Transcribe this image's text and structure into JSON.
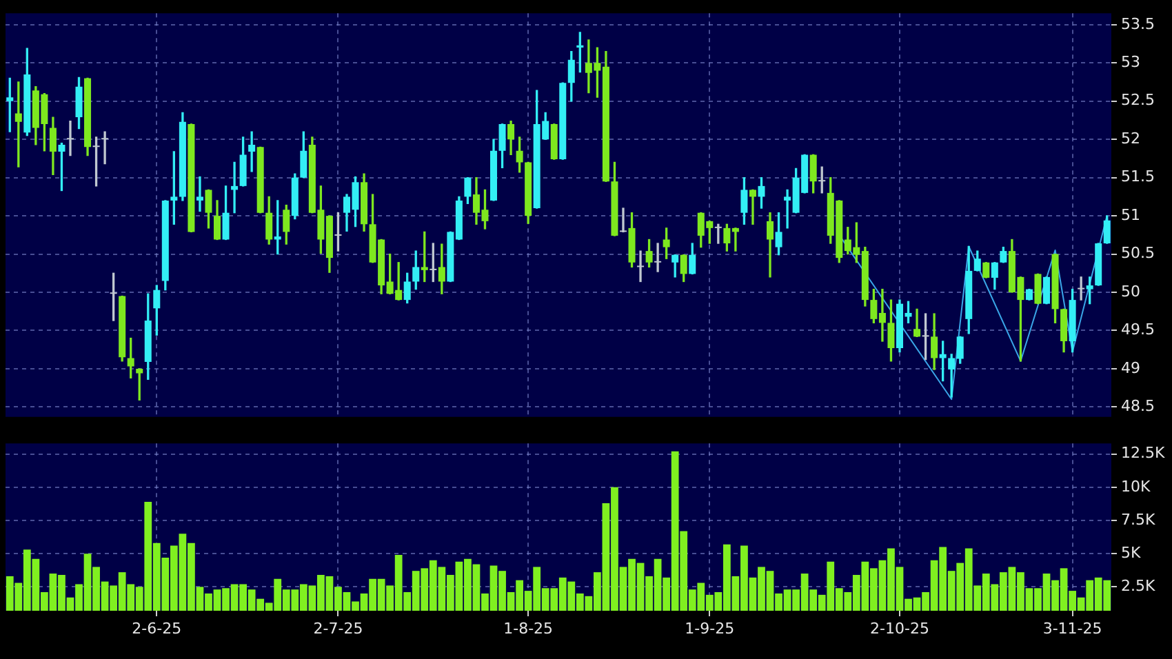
{
  "chart_data": [
    {
      "type": "candlestick",
      "categories": [
        null,
        null,
        null,
        null,
        null,
        null,
        null,
        null,
        null,
        null,
        null,
        null,
        null,
        null,
        null,
        null,
        null,
        null,
        null,
        null,
        null,
        null,
        null,
        null,
        null,
        null,
        null,
        null,
        null,
        null,
        null,
        null,
        null,
        null,
        null,
        null,
        null,
        null,
        null,
        null,
        null,
        null,
        null,
        null,
        null,
        null,
        null,
        null,
        null,
        null,
        null,
        null,
        null,
        null,
        null,
        null,
        null,
        null,
        null,
        null,
        null,
        null,
        null,
        null,
        null,
        null,
        null,
        null,
        null,
        null,
        null,
        null,
        null,
        null,
        null,
        null,
        null,
        null,
        null,
        null,
        null,
        null,
        null,
        null,
        null,
        null,
        null,
        null,
        null,
        null,
        null,
        null,
        null,
        null,
        null,
        null,
        null,
        null,
        null,
        null,
        null,
        null,
        null,
        null,
        null,
        null,
        null,
        null,
        null,
        null,
        null,
        null,
        null,
        null,
        null,
        null,
        null,
        null,
        null,
        null,
        null,
        null,
        null,
        null,
        null,
        null,
        null,
        null
      ],
      "ohlc": [
        [
          52.5,
          52.8,
          52.1,
          52.55
        ],
        [
          52.34,
          52.75,
          51.64,
          52.23
        ],
        [
          52.09,
          53.19,
          52.05,
          52.85
        ],
        [
          52.64,
          52.69,
          51.93,
          52.15
        ],
        [
          52.59,
          52.6,
          51.85,
          52.2
        ],
        [
          52.15,
          52.29,
          51.54,
          51.84
        ],
        [
          51.84,
          51.95,
          51.33,
          51.93
        ],
        [
          52.0,
          52.24,
          51.79,
          52.0
        ],
        [
          52.29,
          52.81,
          52.14,
          52.69
        ],
        [
          52.8,
          52.8,
          51.79,
          51.9
        ],
        [
          51.9,
          52.03,
          51.39,
          51.9
        ],
        [
          52.0,
          52.1,
          51.68,
          52.0
        ],
        [
          49.98,
          50.25,
          49.63,
          49.98
        ],
        [
          49.95,
          49.95,
          49.1,
          49.15
        ],
        [
          49.14,
          49.4,
          48.88,
          49.03
        ],
        [
          49.0,
          49.0,
          48.59,
          48.94
        ],
        [
          49.09,
          49.98,
          48.86,
          49.63
        ],
        [
          49.79,
          50.09,
          49.44,
          50.03
        ],
        [
          50.15,
          51.2,
          50.03,
          51.2
        ],
        [
          51.2,
          51.84,
          50.89,
          51.25
        ],
        [
          51.25,
          52.35,
          51.2,
          52.23
        ],
        [
          52.2,
          52.2,
          50.79,
          50.79
        ],
        [
          51.2,
          51.51,
          51.06,
          51.25
        ],
        [
          51.34,
          51.34,
          50.84,
          51.04
        ],
        [
          51.0,
          51.2,
          50.69,
          50.69
        ],
        [
          50.69,
          51.39,
          50.69,
          51.04
        ],
        [
          51.34,
          51.7,
          51.04,
          51.39
        ],
        [
          51.39,
          52.03,
          51.39,
          51.8
        ],
        [
          51.84,
          52.1,
          51.58,
          51.93
        ],
        [
          51.9,
          51.9,
          51.04,
          51.04
        ],
        [
          51.04,
          51.25,
          50.63,
          50.69
        ],
        [
          50.69,
          51.2,
          50.5,
          50.73
        ],
        [
          51.08,
          51.14,
          50.63,
          50.79
        ],
        [
          51.0,
          51.55,
          50.96,
          51.5
        ],
        [
          51.5,
          52.1,
          51.5,
          51.85
        ],
        [
          51.93,
          52.03,
          51.04,
          51.04
        ],
        [
          51.08,
          51.39,
          50.51,
          50.69
        ],
        [
          51.0,
          51.0,
          50.26,
          50.45
        ],
        [
          50.74,
          51.04,
          50.54,
          50.74
        ],
        [
          51.04,
          51.28,
          50.8,
          51.25
        ],
        [
          51.08,
          51.51,
          50.86,
          51.44
        ],
        [
          51.44,
          51.55,
          50.8,
          50.89
        ],
        [
          50.89,
          51.28,
          50.39,
          50.39
        ],
        [
          50.69,
          50.69,
          49.98,
          50.09
        ],
        [
          50.14,
          50.5,
          49.98,
          49.98
        ],
        [
          50.03,
          50.39,
          49.9,
          49.9
        ],
        [
          49.9,
          50.25,
          49.86,
          50.14
        ],
        [
          50.14,
          50.54,
          50.04,
          50.33
        ],
        [
          50.33,
          50.79,
          50.14,
          50.29
        ],
        [
          50.29,
          50.64,
          50.14,
          50.29
        ],
        [
          50.33,
          50.63,
          49.98,
          50.14
        ],
        [
          50.14,
          50.79,
          50.14,
          50.79
        ],
        [
          50.69,
          51.25,
          50.69,
          51.2
        ],
        [
          51.25,
          51.5,
          51.16,
          51.5
        ],
        [
          51.28,
          51.5,
          50.89,
          51.04
        ],
        [
          51.08,
          51.34,
          50.83,
          50.93
        ],
        [
          51.2,
          52.0,
          51.2,
          51.85
        ],
        [
          51.85,
          52.2,
          51.63,
          52.2
        ],
        [
          52.2,
          52.24,
          51.8,
          52.0
        ],
        [
          51.85,
          52.03,
          51.57,
          51.7
        ],
        [
          51.7,
          51.7,
          50.9,
          51.0
        ],
        [
          51.1,
          52.64,
          51.1,
          52.2
        ],
        [
          52.0,
          52.35,
          52.0,
          52.24
        ],
        [
          52.2,
          52.2,
          51.74,
          51.74
        ],
        [
          51.74,
          52.74,
          51.74,
          52.74
        ],
        [
          52.74,
          53.15,
          52.5,
          53.04
        ],
        [
          53.2,
          53.4,
          52.88,
          53.23
        ],
        [
          53.0,
          53.3,
          52.61,
          52.87
        ],
        [
          53.0,
          53.2,
          52.55,
          52.9
        ],
        [
          52.95,
          53.15,
          51.45,
          51.45
        ],
        [
          51.45,
          51.7,
          50.74,
          50.74
        ],
        [
          50.79,
          51.1,
          50.79,
          50.79
        ],
        [
          50.84,
          51.04,
          50.33,
          50.39
        ],
        [
          50.33,
          50.54,
          50.14,
          50.33
        ],
        [
          50.54,
          50.69,
          50.33,
          50.39
        ],
        [
          50.39,
          50.64,
          50.27,
          50.39
        ],
        [
          50.69,
          50.84,
          50.44,
          50.59
        ],
        [
          50.39,
          50.49,
          50.2,
          50.49
        ],
        [
          50.49,
          50.49,
          50.14,
          50.24
        ],
        [
          50.24,
          50.64,
          50.24,
          50.49
        ],
        [
          51.04,
          51.04,
          50.59,
          50.74
        ],
        [
          50.93,
          50.93,
          50.64,
          50.84
        ],
        [
          50.84,
          50.89,
          50.64,
          50.84
        ],
        [
          50.84,
          50.89,
          50.54,
          50.64
        ],
        [
          50.84,
          50.84,
          50.54,
          50.79
        ],
        [
          51.04,
          51.5,
          50.89,
          51.34
        ],
        [
          51.34,
          51.34,
          50.89,
          51.25
        ],
        [
          51.25,
          51.5,
          51.1,
          51.39
        ],
        [
          50.93,
          51.04,
          50.2,
          50.69
        ],
        [
          50.59,
          51.04,
          50.49,
          50.79
        ],
        [
          51.2,
          51.34,
          50.84,
          51.25
        ],
        [
          51.04,
          51.62,
          51.04,
          51.5
        ],
        [
          51.3,
          51.8,
          51.3,
          51.8
        ],
        [
          51.8,
          51.8,
          51.3,
          51.45
        ],
        [
          51.45,
          51.64,
          51.3,
          51.45
        ],
        [
          51.3,
          51.5,
          50.64,
          50.74
        ],
        [
          51.2,
          51.2,
          50.39,
          50.45
        ],
        [
          50.69,
          50.85,
          50.5,
          50.54
        ],
        [
          50.59,
          50.91,
          50.39,
          50.49
        ],
        [
          50.54,
          50.59,
          49.82,
          49.9
        ],
        [
          49.9,
          50.04,
          49.6,
          49.65
        ],
        [
          49.73,
          50.04,
          49.36,
          49.6
        ],
        [
          49.6,
          49.9,
          49.1,
          49.27
        ],
        [
          49.27,
          49.9,
          49.22,
          49.85
        ],
        [
          49.68,
          49.88,
          49.6,
          49.73
        ],
        [
          49.52,
          49.78,
          49.42,
          49.42
        ],
        [
          49.42,
          49.72,
          49.12,
          49.42
        ],
        [
          49.42,
          49.72,
          48.99,
          49.14
        ],
        [
          49.14,
          49.36,
          48.84,
          49.19
        ],
        [
          48.99,
          49.19,
          48.63,
          49.14
        ],
        [
          49.13,
          49.42,
          49.07,
          49.42
        ],
        [
          49.65,
          50.6,
          49.46,
          50.28
        ],
        [
          50.28,
          50.54,
          50.28,
          50.44
        ],
        [
          50.39,
          50.39,
          50.19,
          50.19
        ],
        [
          50.19,
          50.39,
          50.04,
          50.39
        ],
        [
          50.39,
          50.59,
          50.39,
          50.54
        ],
        [
          50.54,
          50.69,
          50.0,
          50.0
        ],
        [
          50.2,
          50.2,
          49.1,
          49.9
        ],
        [
          49.9,
          50.04,
          49.9,
          50.04
        ],
        [
          50.24,
          50.24,
          49.85,
          49.85
        ],
        [
          49.85,
          50.2,
          49.85,
          50.2
        ],
        [
          50.5,
          50.5,
          49.6,
          49.78
        ],
        [
          49.78,
          49.78,
          49.22,
          49.36
        ],
        [
          49.36,
          50.04,
          49.22,
          49.9
        ],
        [
          50.04,
          50.2,
          49.9,
          50.04
        ],
        [
          50.04,
          50.2,
          49.85,
          50.09
        ],
        [
          50.09,
          50.64,
          50.09,
          50.64
        ],
        [
          50.64,
          51.0,
          50.64,
          50.94
        ]
      ],
      "colors": [
        "#33eef5",
        "#7ee81f",
        "#33eef5",
        "#7ee81f",
        "#7ee81f",
        "#7ee81f",
        "#33eef5",
        "#c0c8d0",
        "#33eef5",
        "#7ee81f",
        "#c0c8d0",
        "#c0c8d0",
        "#c0c8d0",
        "#7ee81f",
        "#7ee81f",
        "#7ee81f",
        "#33eef5",
        "#33eef5",
        "#33eef5",
        "#33eef5",
        "#33eef5",
        "#7ee81f",
        "#33eef5",
        "#7ee81f",
        "#7ee81f",
        "#33eef5",
        "#33eef5",
        "#33eef5",
        "#33eef5",
        "#7ee81f",
        "#7ee81f",
        "#33eef5",
        "#7ee81f",
        "#33eef5",
        "#33eef5",
        "#7ee81f",
        "#7ee81f",
        "#7ee81f",
        "#c0c8d0",
        "#33eef5",
        "#33eef5",
        "#7ee81f",
        "#7ee81f",
        "#7ee81f",
        "#7ee81f",
        "#7ee81f",
        "#33eef5",
        "#33eef5",
        "#7ee81f",
        "#c0c8d0",
        "#7ee81f",
        "#33eef5",
        "#33eef5",
        "#33eef5",
        "#7ee81f",
        "#7ee81f",
        "#33eef5",
        "#33eef5",
        "#7ee81f",
        "#7ee81f",
        "#7ee81f",
        "#33eef5",
        "#33eef5",
        "#7ee81f",
        "#33eef5",
        "#33eef5",
        "#33eef5",
        "#7ee81f",
        "#7ee81f",
        "#7ee81f",
        "#7ee81f",
        "#c0c8d0",
        "#7ee81f",
        "#c0c8d0",
        "#7ee81f",
        "#c0c8d0",
        "#7ee81f",
        "#33eef5",
        "#7ee81f",
        "#33eef5",
        "#7ee81f",
        "#7ee81f",
        "#c0c8d0",
        "#7ee81f",
        "#7ee81f",
        "#33eef5",
        "#7ee81f",
        "#33eef5",
        "#7ee81f",
        "#33eef5",
        "#33eef5",
        "#33eef5",
        "#33eef5",
        "#7ee81f",
        "#c0c8d0",
        "#7ee81f",
        "#7ee81f",
        "#7ee81f",
        "#7ee81f",
        "#7ee81f",
        "#7ee81f",
        "#7ee81f",
        "#7ee81f",
        "#33eef5",
        "#33eef5",
        "#7ee81f",
        "#c0c8d0",
        "#7ee81f",
        "#33eef5",
        "#33eef5",
        "#33eef5",
        "#33eef5",
        "#33eef5",
        "#7ee81f",
        "#33eef5",
        "#33eef5",
        "#7ee81f",
        "#7ee81f",
        "#33eef5",
        "#7ee81f",
        "#33eef5",
        "#7ee81f",
        "#7ee81f",
        "#33eef5",
        "#c0c8d0",
        "#33eef5",
        "#33eef5",
        "#33eef5"
      ],
      "series": [
        {
          "type": "line",
          "color": "#3aa6e8",
          "values": [
            null,
            null,
            null,
            null,
            null,
            null,
            null,
            null,
            null,
            null,
            null,
            null,
            null,
            null,
            null,
            null,
            null,
            null,
            null,
            null,
            null,
            null,
            null,
            null,
            null,
            null,
            null,
            null,
            null,
            null,
            null,
            null,
            null,
            null,
            null,
            null,
            null,
            null,
            null,
            null,
            null,
            null,
            null,
            null,
            null,
            null,
            null,
            null,
            null,
            null,
            null,
            null,
            null,
            null,
            null,
            null,
            null,
            null,
            null,
            null,
            null,
            null,
            null,
            null,
            null,
            null,
            null,
            null,
            null,
            null,
            null,
            null,
            null,
            null,
            null,
            null,
            null,
            null,
            null,
            null,
            null,
            null,
            null,
            null,
            null,
            null,
            null,
            null,
            null,
            null,
            null,
            null,
            null,
            null,
            null,
            null,
            50.75,
            null,
            null,
            null,
            null,
            null,
            null,
            null,
            null,
            null,
            null,
            null,
            null,
            48.6,
            null,
            50.6,
            null,
            null,
            null,
            null,
            null,
            49.1,
            null,
            null,
            null,
            50.55,
            null,
            49.22,
            null,
            null,
            null,
            51.0
          ]
        }
      ],
      "marker": "none",
      "line_style": "solid",
      "ylim": [
        48.37,
        53.65
      ],
      "yticks": [
        48.5,
        49,
        49.5,
        50,
        50.5,
        51,
        51.5,
        52,
        52.5,
        53,
        53.5
      ],
      "grid": true,
      "legend": false,
      "tick_labels": "y"
    },
    {
      "type": "bar",
      "categories": [
        null,
        null,
        null,
        null,
        null,
        null,
        null,
        null,
        null,
        null,
        null,
        null,
        null,
        null,
        null,
        null,
        null,
        "2-6-25",
        null,
        null,
        null,
        null,
        null,
        null,
        null,
        null,
        null,
        null,
        null,
        null,
        null,
        null,
        null,
        null,
        null,
        null,
        null,
        null,
        "2-7-25",
        null,
        null,
        null,
        null,
        null,
        null,
        null,
        null,
        null,
        null,
        null,
        null,
        null,
        null,
        null,
        null,
        null,
        null,
        null,
        null,
        null,
        "1-8-25",
        null,
        null,
        null,
        null,
        null,
        null,
        null,
        null,
        null,
        null,
        null,
        null,
        null,
        null,
        null,
        null,
        null,
        null,
        null,
        null,
        "1-9-25",
        null,
        null,
        null,
        null,
        null,
        null,
        null,
        null,
        null,
        null,
        null,
        null,
        null,
        null,
        null,
        null,
        null,
        null,
        null,
        null,
        null,
        "2-10-25",
        null,
        null,
        null,
        null,
        null,
        null,
        null,
        null,
        null,
        null,
        null,
        null,
        null,
        null,
        null,
        null,
        null,
        null,
        null,
        "3-11-25",
        null,
        null,
        null,
        null
      ],
      "color": "#80f020",
      "values": [
        3300,
        2800,
        5300,
        4600,
        2100,
        3500,
        3400,
        1700,
        2700,
        5000,
        4000,
        2900,
        2600,
        3600,
        2700,
        2500,
        8900,
        5800,
        4700,
        5600,
        6500,
        5800,
        2500,
        2000,
        2300,
        2400,
        2700,
        2700,
        2300,
        1600,
        1300,
        3100,
        2300,
        2300,
        2700,
        2600,
        3400,
        3300,
        2500,
        2100,
        1400,
        2000,
        3100,
        3100,
        2600,
        4900,
        2100,
        3700,
        3900,
        4500,
        4000,
        3400,
        4400,
        4600,
        4200,
        2000,
        4100,
        3700,
        2100,
        3000,
        2200,
        4000,
        2400,
        2400,
        3200,
        2900,
        2000,
        1800,
        3600,
        8800,
        10000,
        4000,
        4600,
        4300,
        3300,
        4600,
        3200,
        12700,
        6700,
        2300,
        2800,
        1900,
        2100,
        5700,
        3300,
        5600,
        3200,
        4000,
        3700,
        2000,
        2300,
        2300,
        3500,
        2300,
        1900,
        4400,
        2400,
        2100,
        3400,
        4400,
        3900,
        4500,
        5400,
        4000,
        1600,
        1700,
        2100,
        4500,
        5500,
        3700,
        4300,
        5400,
        2600,
        3500,
        2700,
        3600,
        4000,
        3600,
        2400,
        2400,
        3500,
        3000,
        3900,
        2200,
        1700,
        3000,
        3200,
        3000
      ],
      "ylim": [
        700,
        13300
      ],
      "yticks": [
        {
          "value": 2500,
          "label": "2.5K"
        },
        {
          "value": 5000,
          "label": "5K"
        },
        {
          "value": 7500,
          "label": "7.5K"
        },
        {
          "value": 10000,
          "label": "10K"
        },
        {
          "value": 12500,
          "label": "12.5K"
        }
      ],
      "grid": true,
      "legend": false
    }
  ]
}
